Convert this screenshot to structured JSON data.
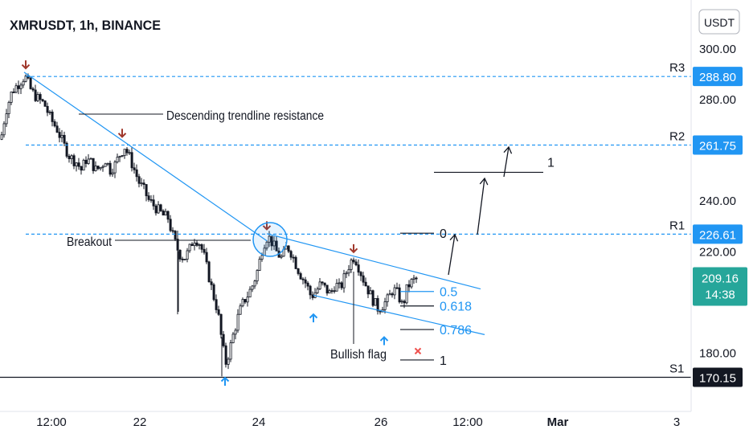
{
  "header": {
    "title": "XMRUSDT, 1h, BINANCE",
    "currency_button": "USDT"
  },
  "colors": {
    "up": "#26a69a",
    "down": "#ef5350",
    "candle_dark": "#131722",
    "candle_light": "#ffffff",
    "trend": "#2196f3",
    "level": "#2196f3",
    "fib": "#2196f3",
    "label_blue": "#2196f3",
    "label_black": "#131722",
    "arrow_red": "#a0382c",
    "arrow_blue": "#2196f3",
    "text": "#131722",
    "axis_text": "#131722"
  },
  "chart_data": {
    "type": "candlestick",
    "symbol": "XMRUSDT",
    "interval": "1h",
    "exchange": "BINANCE",
    "ylim": [
      165,
      312
    ],
    "y_ticks": [
      {
        "value": 300,
        "label": "300.00"
      },
      {
        "value": 280,
        "label": "280.00"
      },
      {
        "value": 240,
        "label": "240.00"
      },
      {
        "value": 220,
        "label": "220.00"
      },
      {
        "value": 180,
        "label": "180.00"
      }
    ],
    "x_ticks": [
      {
        "label": "12:00",
        "bold": false
      },
      {
        "label": "22",
        "bold": false
      },
      {
        "label": "24",
        "bold": false
      },
      {
        "label": "26",
        "bold": false
      },
      {
        "label": "12:00",
        "bold": false
      },
      {
        "label": "Mar",
        "bold": true
      },
      {
        "label": "3",
        "bold": false
      }
    ],
    "levels": [
      {
        "name": "R3",
        "value": 288.8,
        "label": "288.80",
        "style": "blue"
      },
      {
        "name": "R2",
        "value": 261.75,
        "label": "261.75",
        "style": "blue"
      },
      {
        "name": "R1",
        "value": 226.61,
        "label": "226.61",
        "style": "blue"
      },
      {
        "name": "S1",
        "value": 170.15,
        "label": "170.15",
        "style": "black"
      }
    ],
    "last_price": {
      "value": 209.16,
      "label": "209.16",
      "countdown": "14:38"
    },
    "price_path": [
      [
        0,
        264
      ],
      [
        6,
        275
      ],
      [
        14,
        283
      ],
      [
        22,
        286
      ],
      [
        30,
        289
      ],
      [
        38,
        283
      ],
      [
        46,
        280
      ],
      [
        54,
        278
      ],
      [
        62,
        272
      ],
      [
        70,
        268
      ],
      [
        78,
        262
      ],
      [
        86,
        257
      ],
      [
        94,
        255
      ],
      [
        100,
        252
      ],
      [
        106,
        256
      ],
      [
        112,
        255
      ],
      [
        118,
        252
      ],
      [
        124,
        253
      ],
      [
        130,
        256
      ],
      [
        136,
        252
      ],
      [
        142,
        254
      ],
      [
        148,
        258
      ],
      [
        154,
        261
      ],
      [
        160,
        257
      ],
      [
        166,
        252
      ],
      [
        172,
        247
      ],
      [
        178,
        244
      ],
      [
        184,
        240
      ],
      [
        190,
        238
      ],
      [
        196,
        236
      ],
      [
        202,
        234
      ],
      [
        208,
        233
      ],
      [
        212,
        228
      ],
      [
        216,
        224
      ],
      [
        222,
        219
      ],
      [
        228,
        217
      ],
      [
        234,
        220
      ],
      [
        240,
        225
      ],
      [
        246,
        224
      ],
      [
        252,
        219
      ],
      [
        258,
        211
      ],
      [
        264,
        203
      ],
      [
        270,
        196
      ],
      [
        276,
        182
      ],
      [
        280,
        176
      ],
      [
        284,
        180
      ],
      [
        290,
        188
      ],
      [
        296,
        195
      ],
      [
        302,
        200
      ],
      [
        308,
        203
      ],
      [
        314,
        207
      ],
      [
        320,
        213
      ],
      [
        326,
        222
      ],
      [
        332,
        226
      ],
      [
        338,
        223
      ],
      [
        344,
        219
      ],
      [
        350,
        217
      ],
      [
        356,
        222
      ],
      [
        362,
        219
      ],
      [
        368,
        214
      ],
      [
        374,
        210
      ],
      [
        380,
        207
      ],
      [
        386,
        202
      ],
      [
        392,
        204
      ],
      [
        398,
        207
      ],
      [
        404,
        205
      ],
      [
        410,
        203
      ],
      [
        416,
        207
      ],
      [
        422,
        205
      ],
      [
        428,
        210
      ],
      [
        434,
        215
      ],
      [
        440,
        218
      ],
      [
        446,
        213
      ],
      [
        452,
        208
      ],
      [
        458,
        204
      ],
      [
        464,
        200
      ],
      [
        470,
        197
      ],
      [
        476,
        199
      ],
      [
        482,
        201
      ],
      [
        488,
        205
      ],
      [
        494,
        203
      ],
      [
        500,
        198
      ],
      [
        506,
        206
      ],
      [
        512,
        208
      ],
      [
        518,
        209.16
      ]
    ],
    "trendlines": [
      {
        "name": "descending-trendline",
        "from": [
          30,
          290.5
        ],
        "to": [
          332,
          224
        ]
      },
      {
        "name": "flag-upper-line",
        "from": [
          332,
          226.8
        ],
        "to": [
          598,
          205
        ]
      },
      {
        "name": "flag-lower-line",
        "from": [
          390,
          202.5
        ],
        "to": [
          603,
          187
        ]
      }
    ],
    "fib_levels": [
      {
        "label": "0.5",
        "value": 204,
        "x1": 498,
        "x2": 540,
        "color": "blue"
      },
      {
        "label": "0.618",
        "value": 198.3,
        "x1": 498,
        "x2": 540,
        "color": "dark"
      },
      {
        "label": "0.786",
        "value": 189,
        "x1": 498,
        "x2": 540,
        "color": "dark"
      },
      {
        "label": "0",
        "value": 227,
        "x1": 498,
        "x2": 540,
        "color": "dark"
      },
      {
        "label": "1",
        "value": 177,
        "x1": 498,
        "x2": 540,
        "color": "dark"
      }
    ],
    "projection_target_level": {
      "label": "1",
      "value": 251,
      "x1": 540,
      "x2": 676
    },
    "annotations": [
      {
        "name": "descending-trendline-label",
        "text": "Descending trendline resistance"
      },
      {
        "name": "breakout-label",
        "text": "Breakout"
      },
      {
        "name": "bullish-flag-label",
        "text": "Bullish flag"
      }
    ],
    "markers": [
      {
        "kind": "down-arrow",
        "x": 32,
        "value": 292
      },
      {
        "kind": "down-arrow",
        "x": 152,
        "value": 265
      },
      {
        "kind": "down-arrow",
        "x": 332,
        "value": 228.5
      },
      {
        "kind": "down-arrow",
        "x": 440,
        "value": 219.5
      },
      {
        "kind": "up-arrow",
        "x": 280,
        "value": 170
      },
      {
        "kind": "up-arrow",
        "x": 390,
        "value": 195
      },
      {
        "kind": "up-arrow",
        "x": 478,
        "value": 186
      },
      {
        "kind": "stop-x",
        "x": 520,
        "value": 180.5
      }
    ]
  }
}
